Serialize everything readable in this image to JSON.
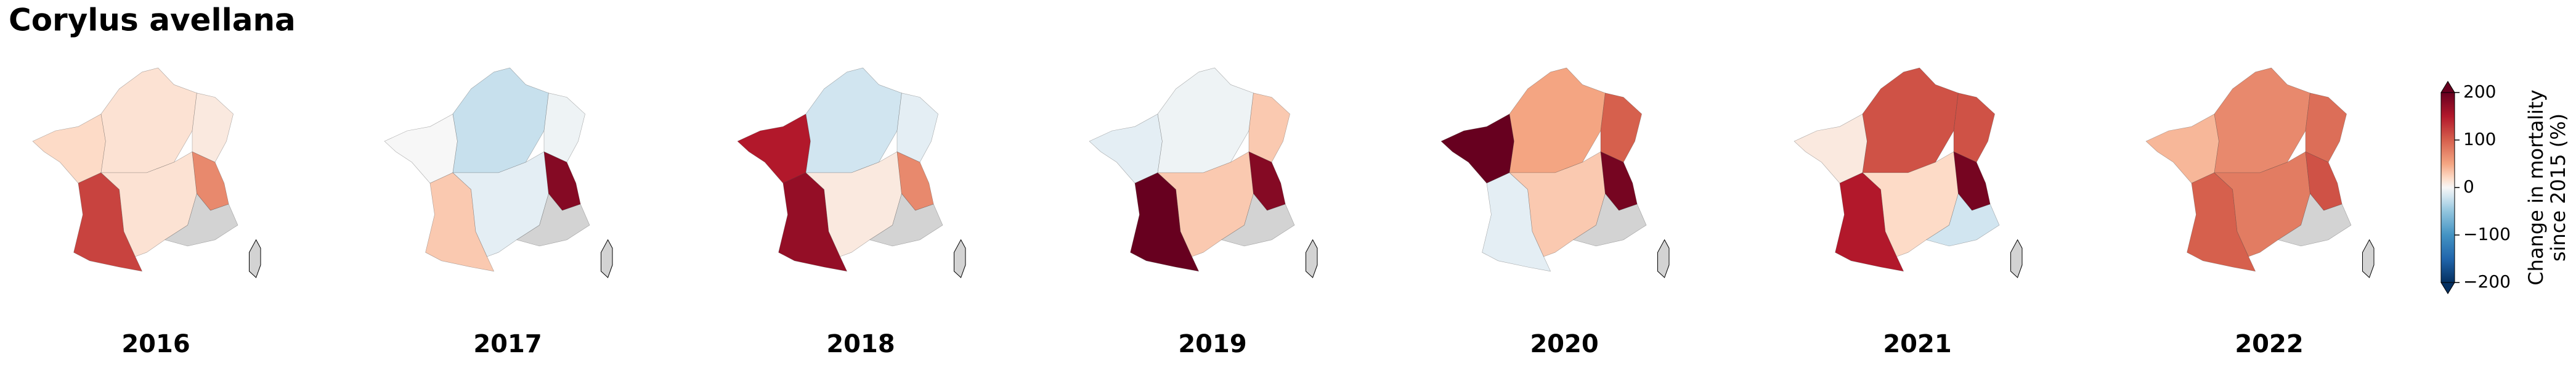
{
  "chart_data": {
    "type": "choropleth",
    "title": "Corylus avellana",
    "missing_color": "#d3d3d3",
    "maps": [
      {
        "year": "2016",
        "values": [
          20,
          15,
          10,
          120,
          15,
          70,
          null
        ]
      },
      {
        "year": "2017",
        "values": [
          0,
          -25,
          -5,
          30,
          -10,
          180,
          null
        ]
      },
      {
        "year": "2018",
        "values": [
          150,
          -20,
          -10,
          170,
          10,
          70,
          null
        ]
      },
      {
        "year": "2019",
        "values": [
          -10,
          -5,
          30,
          200,
          30,
          180,
          null
        ]
      },
      {
        "year": "2020",
        "values": [
          200,
          50,
          100,
          -10,
          30,
          190,
          null
        ]
      },
      {
        "year": "2021",
        "values": [
          10,
          110,
          110,
          150,
          20,
          190,
          -20
        ]
      },
      {
        "year": "2022",
        "values": [
          40,
          70,
          90,
          100,
          80,
          110,
          null
        ]
      }
    ],
    "colorbar": {
      "cmap": "RdBu_r",
      "clim": [
        -200,
        200
      ],
      "ticks": [
        {
          "value": -200,
          "label": "−200"
        },
        {
          "value": -100,
          "label": "−100"
        },
        0,
        100,
        200
      ],
      "label_lines": [
        "Change in mortality",
        "since 2015 (%)"
      ]
    }
  }
}
